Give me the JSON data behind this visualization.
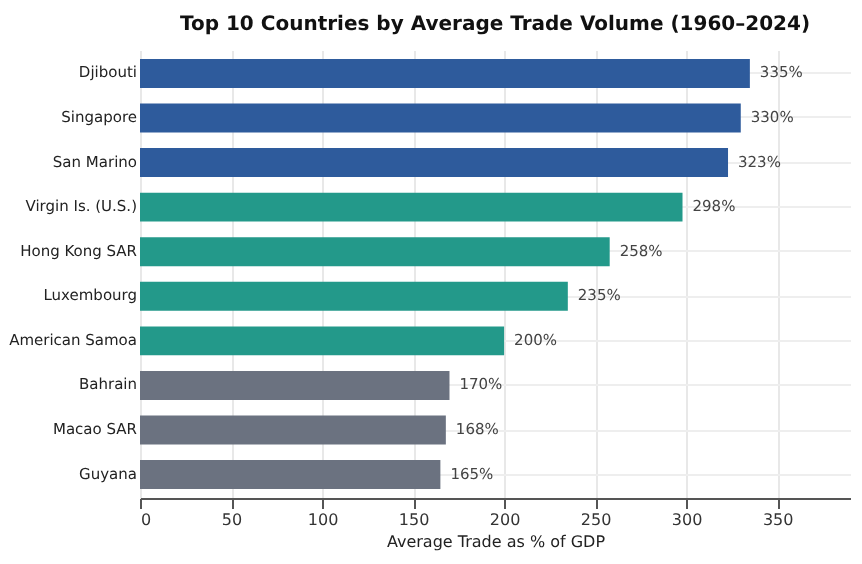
{
  "chart_data": {
    "type": "bar",
    "orientation": "horizontal",
    "title": "Top 10 Countries by Average Trade Volume (1960–2024)",
    "xlabel": "Average Trade as % of GDP",
    "categories": [
      "Djibouti",
      "Singapore",
      "San Marino",
      "Virgin Is. (U.S.)",
      "Hong Kong SAR",
      "Luxembourg",
      "American Samoa",
      "Bahrain",
      "Macao SAR",
      "Guyana"
    ],
    "values": [
      335,
      330,
      323,
      298,
      258,
      235,
      200,
      170,
      168,
      165
    ],
    "value_labels": [
      "335%",
      "330%",
      "323%",
      "298%",
      "258%",
      "235%",
      "200%",
      "170%",
      "168%",
      "165%"
    ],
    "colors": [
      "#2e5b9c",
      "#2e5b9c",
      "#2e5b9c",
      "#23998a",
      "#23998a",
      "#23998a",
      "#23998a",
      "#6b7280",
      "#6b7280",
      "#6b7280"
    ],
    "xlim": [
      0,
      390
    ],
    "xticks": [
      0,
      50,
      100,
      150,
      200,
      250,
      300,
      350
    ],
    "grid": true
  }
}
